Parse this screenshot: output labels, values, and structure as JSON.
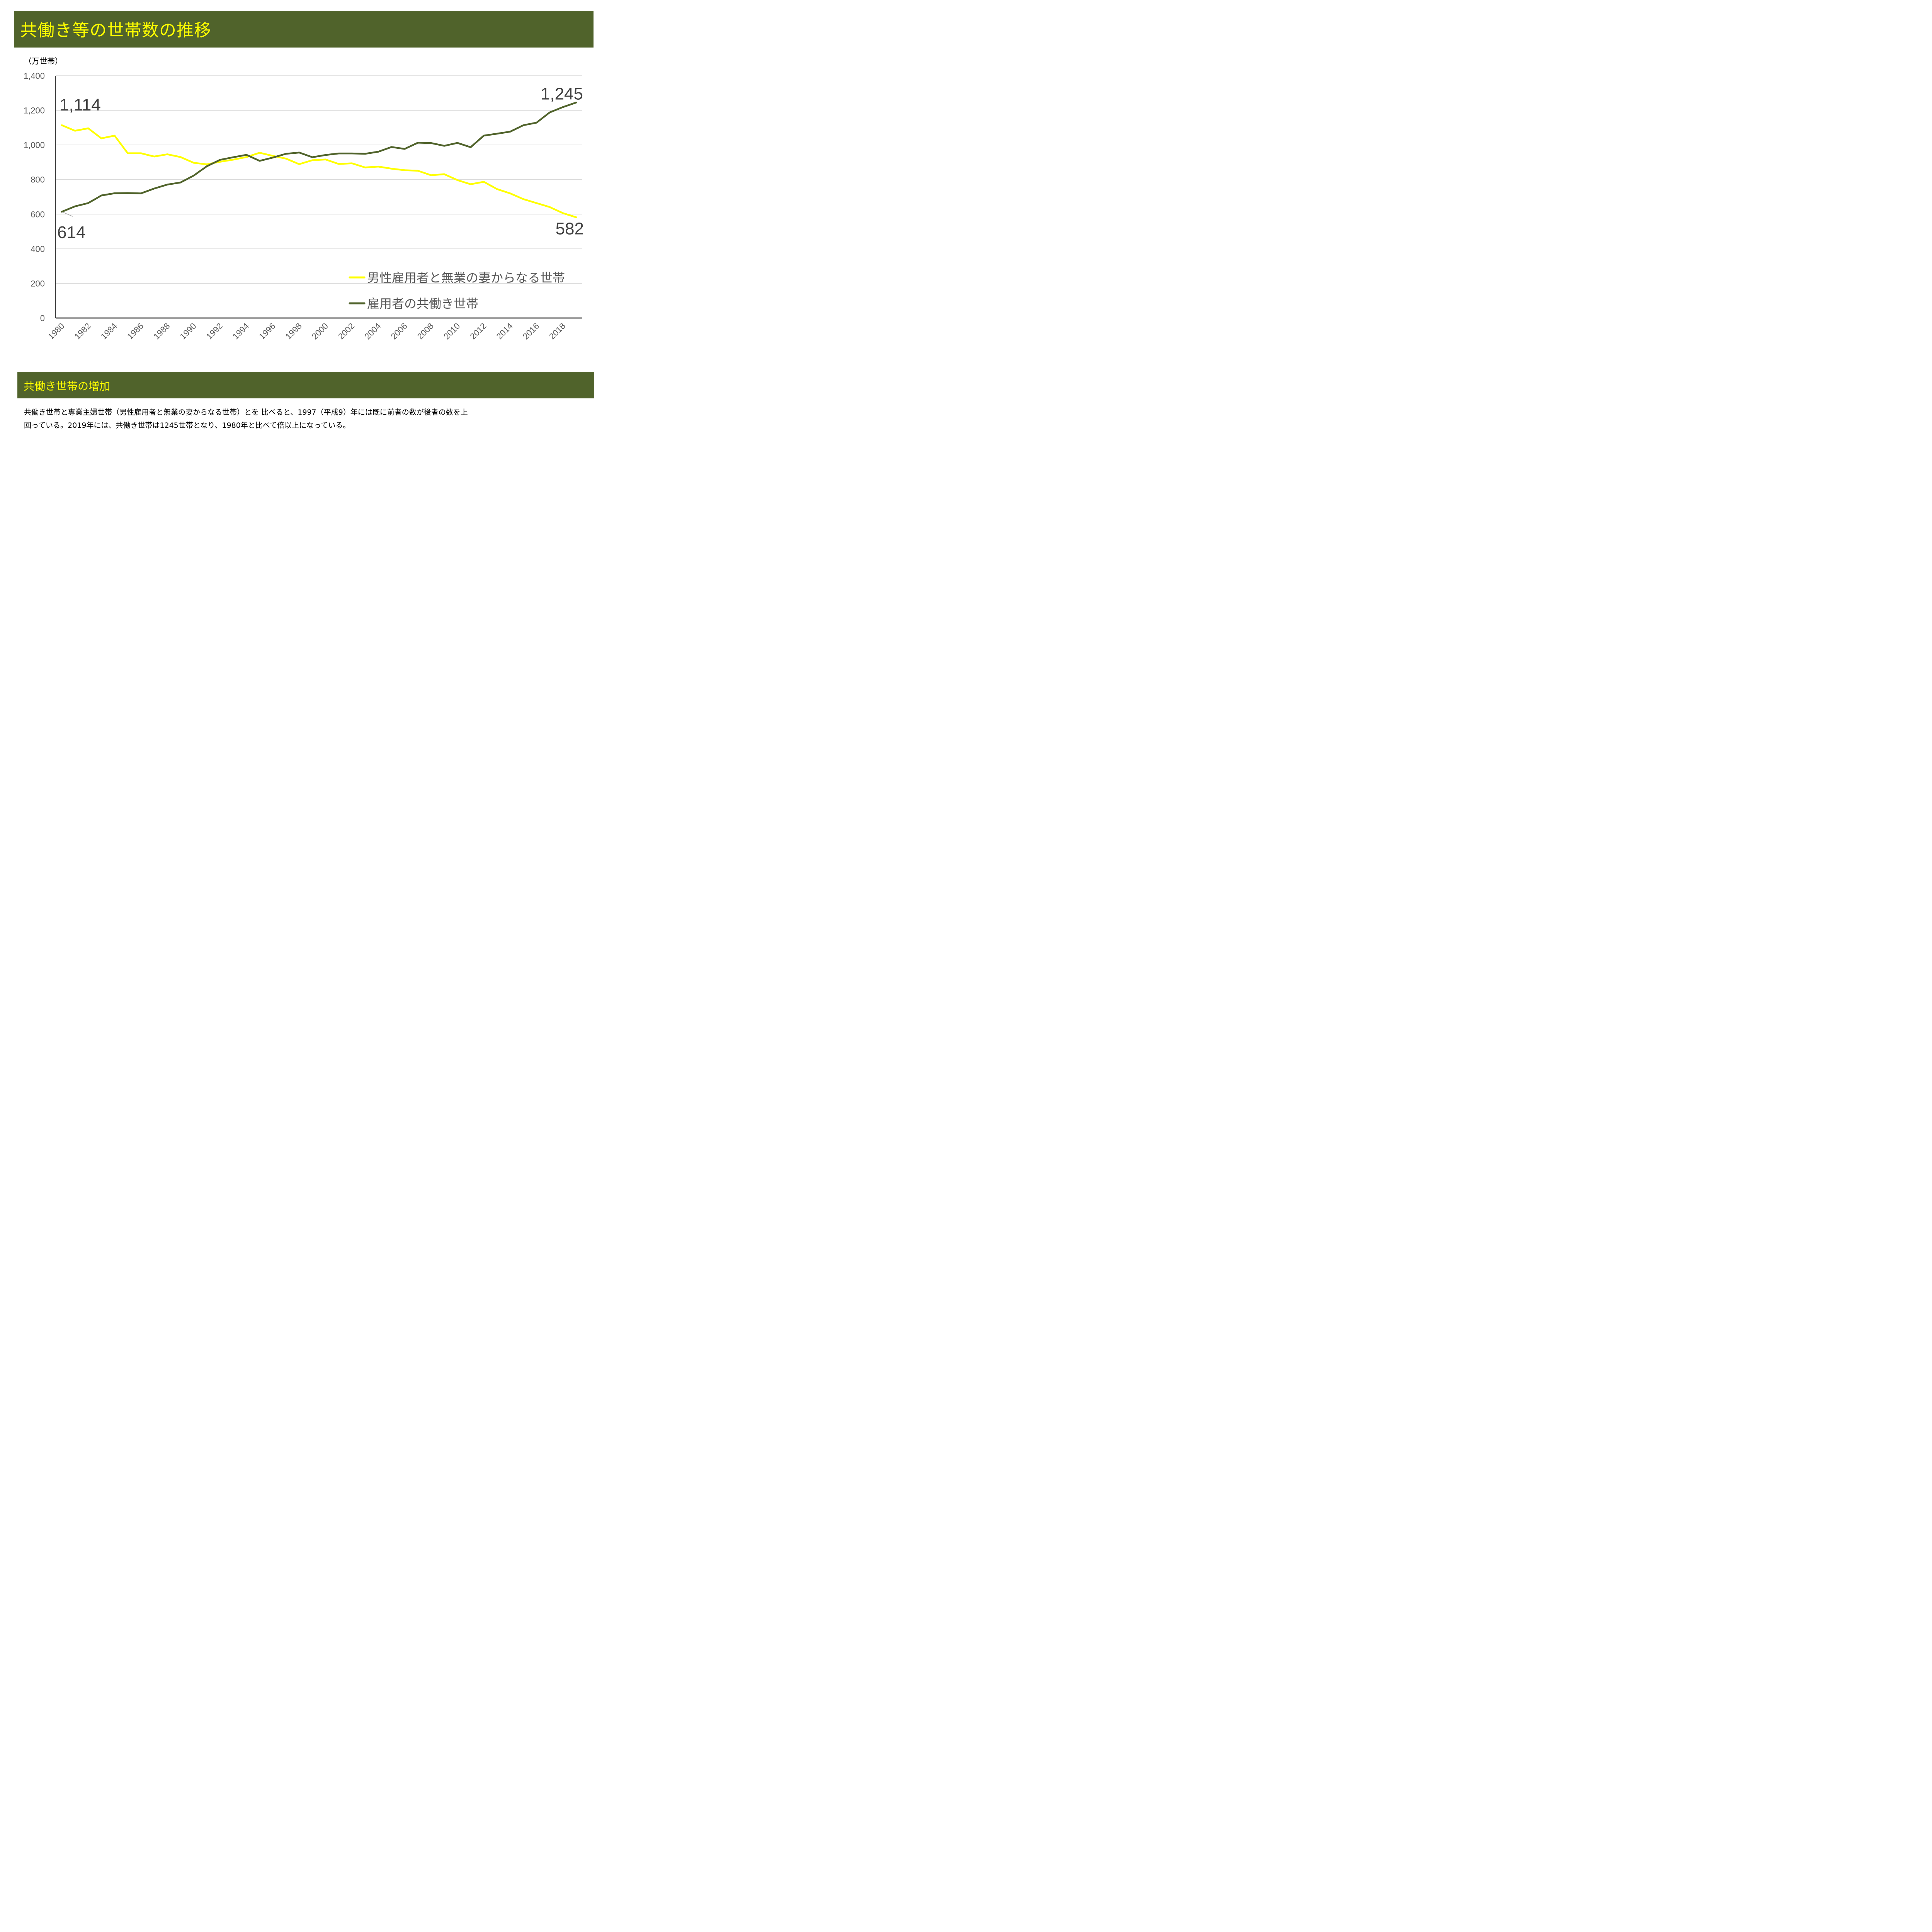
{
  "header": {
    "title": "共働き等の世帯数の推移"
  },
  "unit_label": "（万世帯）",
  "section": {
    "title": "共働き世帯の増加",
    "body_lines": [
      "共働き世帯と専業主婦世帯（男性雇用者と無業の妻からなる世帯）とを 比べると、1997（平成9）年には既に前者の数が後者の数を上",
      "回っている。2019年には、共働き世帯は1245世帯となり、1980年と比べて倍以上になっている。"
    ]
  },
  "colors": {
    "brand": "#50632b",
    "accent_text": "#ffff00",
    "series_single": "#ffff00",
    "series_dual": "#50632b",
    "grid": "#d9d9d9"
  },
  "chart_data": {
    "type": "line",
    "title": "共働き等の世帯数の推移",
    "xlabel": "",
    "ylabel": "（万世帯）",
    "ylim": [
      0,
      1400
    ],
    "yticks": [
      0,
      200,
      400,
      600,
      800,
      1000,
      1200,
      1400
    ],
    "ytick_labels": [
      "0",
      "200",
      "400",
      "600",
      "800",
      "1,000",
      "1,200",
      "1,400"
    ],
    "x": [
      1980,
      1981,
      1982,
      1983,
      1984,
      1985,
      1986,
      1987,
      1988,
      1989,
      1990,
      1991,
      1992,
      1993,
      1994,
      1995,
      1996,
      1997,
      1998,
      1999,
      2000,
      2001,
      2002,
      2003,
      2004,
      2005,
      2006,
      2007,
      2008,
      2009,
      2010,
      2011,
      2012,
      2013,
      2014,
      2015,
      2016,
      2017,
      2018,
      2019
    ],
    "xtick_labels": [
      "1980",
      "1982",
      "1984",
      "1986",
      "1988",
      "1990",
      "1992",
      "1994",
      "1996",
      "1998",
      "2000",
      "2002",
      "2004",
      "2006",
      "2008",
      "2010",
      "2012",
      "2014",
      "2016",
      "2018"
    ],
    "grid": true,
    "legend": "bottom-right",
    "series": [
      {
        "name": "男性雇用者と無業の妻からなる世帯",
        "color": "#ffff00",
        "values": [
          1114,
          1082,
          1096,
          1038,
          1054,
          952,
          952,
          933,
          946,
          930,
          897,
          888,
          903,
          915,
          930,
          955,
          937,
          921,
          889,
          912,
          916,
          890,
          894,
          870,
          875,
          863,
          854,
          851,
          825,
          831,
          797,
          773,
          787,
          745,
          720,
          687,
          664,
          641,
          606,
          582
        ]
      },
      {
        "name": "雇用者の共働き世帯",
        "color": "#50632b",
        "values": [
          614,
          645,
          664,
          708,
          721,
          722,
          720,
          748,
          771,
          783,
          823,
          877,
          914,
          929,
          943,
          908,
          927,
          949,
          956,
          929,
          942,
          951,
          951,
          949,
          961,
          988,
          977,
          1013,
          1011,
          995,
          1012,
          987,
          1054,
          1065,
          1077,
          1114,
          1129,
          1188,
          1219,
          1245
        ]
      }
    ],
    "annotations": [
      {
        "text": "1,114",
        "series": 0,
        "x": 1980
      },
      {
        "text": "614",
        "series": 1,
        "x": 1980
      },
      {
        "text": "1,245",
        "series": 1,
        "x": 2019
      },
      {
        "text": "582",
        "series": 0,
        "x": 2019
      }
    ]
  }
}
